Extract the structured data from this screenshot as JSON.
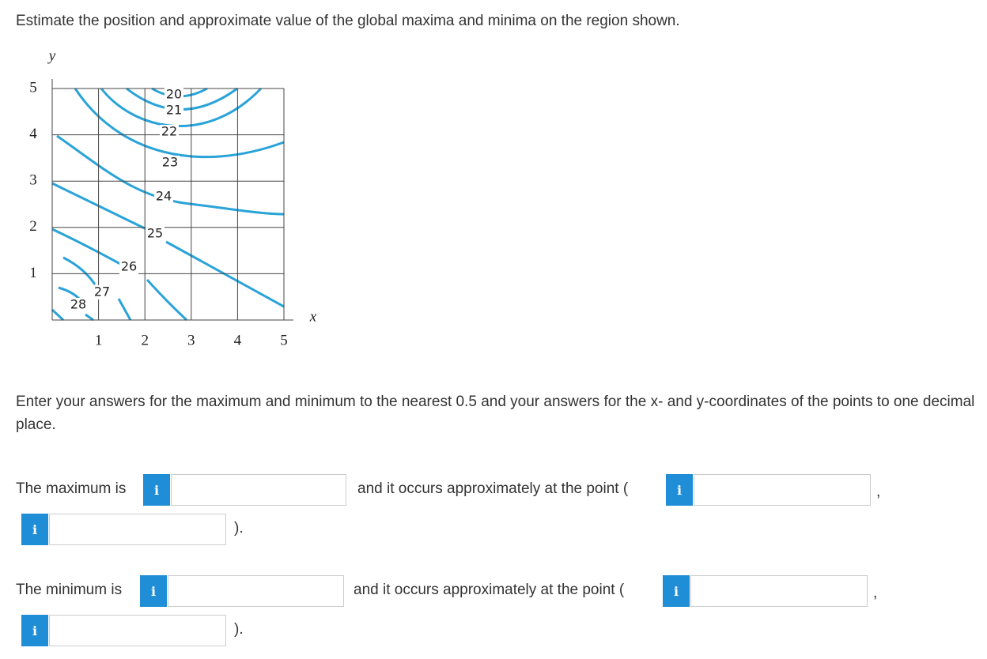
{
  "question": "Estimate the position and approximate value of the global maxima and minima on the region shown.",
  "figure": {
    "x_label": "x",
    "y_label": "y",
    "xlim": [
      0,
      5
    ],
    "ylim": [
      0,
      5
    ],
    "xticks": [
      1,
      2,
      3,
      4,
      5
    ],
    "yticks": [
      1,
      2,
      3,
      4,
      5
    ],
    "contour_labels": [
      "20",
      "21",
      "22",
      "23",
      "24",
      "25",
      "26",
      "27",
      "28"
    ]
  },
  "instructions": "Enter your answers for the maximum and minimum to the nearest 0.5 and your answers for the x- and y-coordinates of the points to one decimal place.",
  "info_icon": "i",
  "answers": [
    {
      "label": "The maximum is",
      "point_text": "and it occurs approximately at the point (",
      "separator": ",",
      "close": ")."
    },
    {
      "label": "The minimum is",
      "point_text": "and it occurs approximately at the point (",
      "separator": ",",
      "close": ")."
    }
  ]
}
